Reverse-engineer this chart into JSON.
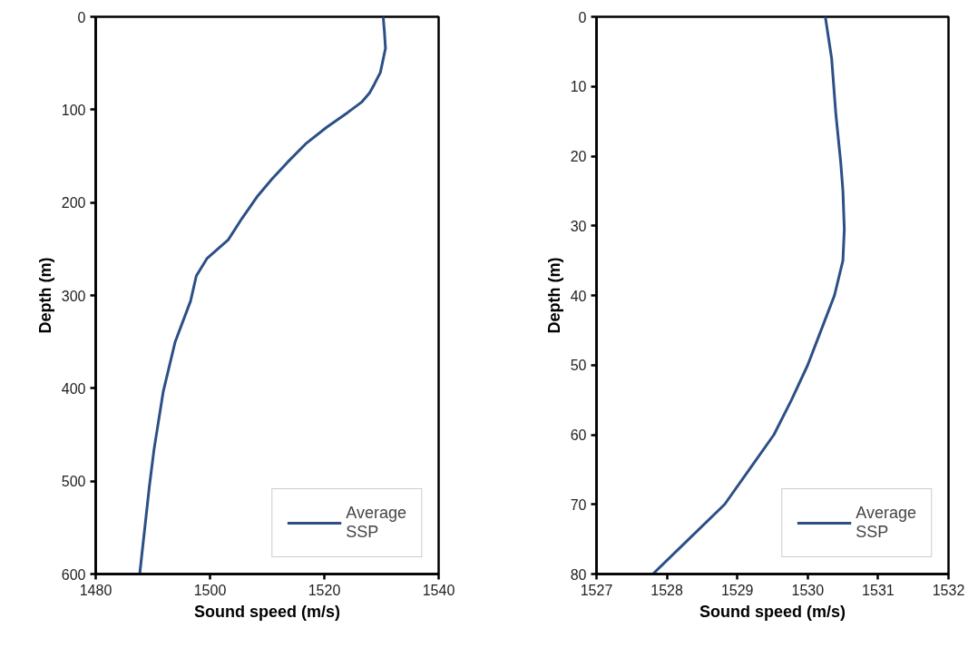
{
  "chart_data": [
    {
      "type": "line",
      "xlabel": "Sound speed (m/s)",
      "ylabel": "Depth (m)",
      "xlim": [
        1480,
        1540
      ],
      "xticks": [
        1480,
        1500,
        1520,
        1540
      ],
      "ylim": [
        600,
        0
      ],
      "yticks": [
        0,
        100,
        200,
        300,
        400,
        500,
        600
      ],
      "grid": false,
      "legend": "bottom right",
      "marker": "none",
      "line_style": "solid",
      "series": [
        {
          "name": "Average SSP",
          "color": "#2c4f86",
          "x": [
            1530.3,
            1530.5,
            1530.7,
            1529.8,
            1528.8,
            1527.9,
            1526.5,
            1524.1,
            1520.4,
            1516.7,
            1513.5,
            1510.8,
            1508.2,
            1505.6,
            1503.2,
            1499.5,
            1497.6,
            1496.6,
            1493.9,
            1491.8,
            1490.2,
            1489.4,
            1487.7
          ],
          "values": [
            0,
            15,
            34,
            60,
            72,
            82,
            92,
            103,
            119,
            137,
            157,
            175,
            194,
            217,
            240,
            260,
            279,
            306,
            350,
            404,
            466,
            505,
            600
          ]
        }
      ]
    },
    {
      "type": "line",
      "xlabel": "Sound speed (m/s)",
      "ylabel": "Depth (m)",
      "xlim": [
        1527,
        1532
      ],
      "xticks": [
        1527,
        1528,
        1529,
        1530,
        1531,
        1532
      ],
      "ylim": [
        80,
        0
      ],
      "yticks": [
        0,
        10,
        20,
        30,
        40,
        50,
        60,
        70,
        80
      ],
      "grid": false,
      "legend": "bottom right",
      "marker": "none",
      "line_style": "solid",
      "series": [
        {
          "name": "Average SSP",
          "color": "#2c4f86",
          "x": [
            1530.25,
            1530.34,
            1530.4,
            1530.47,
            1530.5,
            1530.52,
            1530.5,
            1530.38,
            1530.19,
            1530.0,
            1529.77,
            1529.52,
            1529.17,
            1528.82,
            1528.31,
            1527.8
          ],
          "values": [
            0,
            6,
            14,
            21,
            25,
            30.5,
            35,
            40,
            45,
            50,
            55,
            60,
            65,
            70,
            75,
            80
          ]
        }
      ]
    }
  ]
}
